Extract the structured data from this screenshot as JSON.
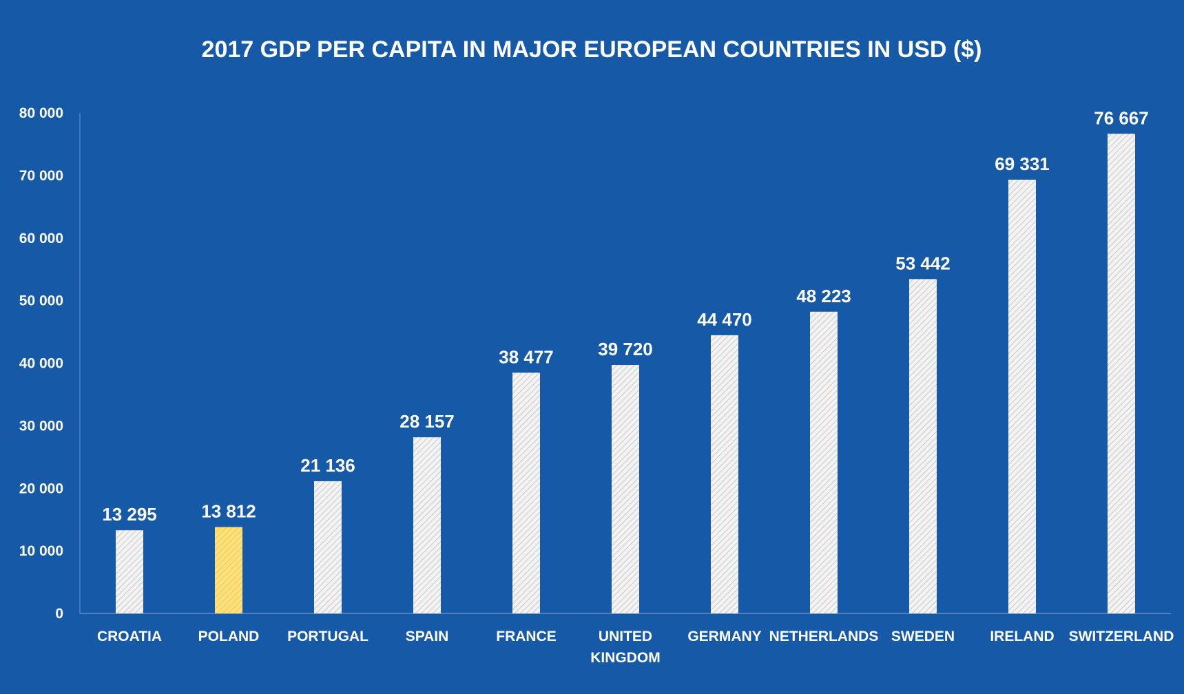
{
  "chart_data": {
    "type": "bar",
    "title": "2017 GDP PER CAPITA IN MAJOR EUROPEAN COUNTRIES IN USD ($)",
    "xlabel": "",
    "ylabel": "",
    "ylim": [
      0,
      80000
    ],
    "yticks": [
      0,
      10000,
      20000,
      30000,
      40000,
      50000,
      60000,
      70000,
      80000
    ],
    "ytick_labels": [
      "0",
      "10 000",
      "20 000",
      "30 000",
      "40 000",
      "50 000",
      "60 000",
      "70 000",
      "80 000"
    ],
    "categories": [
      [
        "CROATIA"
      ],
      [
        "POLAND"
      ],
      [
        "PORTUGAL"
      ],
      [
        "SPAIN"
      ],
      [
        "FRANCE"
      ],
      [
        "UNITED",
        "KINGDOM"
      ],
      [
        "GERMANY"
      ],
      [
        "NETHERLANDS"
      ],
      [
        "SWEDEN"
      ],
      [
        "IRELAND"
      ],
      [
        "SWITZERLAND"
      ]
    ],
    "values": [
      13295,
      13812,
      21136,
      28157,
      38477,
      39720,
      44470,
      48223,
      53442,
      69331,
      76667
    ],
    "data_labels": [
      "13 295",
      "13 812",
      "21 136",
      "28 157",
      "38 477",
      "39 720",
      "44 470",
      "48 223",
      "53 442",
      "69 331",
      "76 667"
    ],
    "highlight_index": 1,
    "grid": false,
    "legend": "none",
    "colors": {
      "background": "#165aa7",
      "bar": "#f3f3f3",
      "bar_hatch": "#bdbdbd",
      "highlight_bar": "#ffe07a",
      "highlight_hatch": "#e6c24a",
      "axis": "#6f9bd4",
      "text": "#ffffff"
    }
  }
}
